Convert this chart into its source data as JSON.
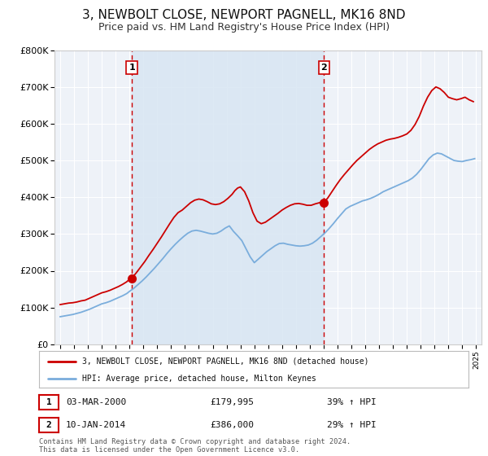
{
  "title": "3, NEWBOLT CLOSE, NEWPORT PAGNELL, MK16 8ND",
  "subtitle": "Price paid vs. HM Land Registry's House Price Index (HPI)",
  "title_fontsize": 11,
  "subtitle_fontsize": 9,
  "bg_color": "#ffffff",
  "plot_bg_color": "#eef2f8",
  "grid_color": "#ffffff",
  "red_line_color": "#cc0000",
  "blue_line_color": "#7aaddc",
  "marker_color": "#cc0000",
  "dashed_line_color": "#cc0000",
  "shaded_color": "#d8e6f3",
  "legend_label_red": "3, NEWBOLT CLOSE, NEWPORT PAGNELL, MK16 8ND (detached house)",
  "legend_label_blue": "HPI: Average price, detached house, Milton Keynes",
  "annotation1_box": "1",
  "annotation1_date": "03-MAR-2000",
  "annotation1_price": "£179,995",
  "annotation1_hpi": "39% ↑ HPI",
  "annotation2_box": "2",
  "annotation2_date": "10-JAN-2014",
  "annotation2_price": "£386,000",
  "annotation2_hpi": "29% ↑ HPI",
  "footnote": "Contains HM Land Registry data © Crown copyright and database right 2024.\nThis data is licensed under the Open Government Licence v3.0.",
  "ylim": [
    0,
    800000
  ],
  "ytick_labels": [
    "£0",
    "£100K",
    "£200K",
    "£300K",
    "£400K",
    "£500K",
    "£600K",
    "£700K",
    "£800K"
  ],
  "ytick_values": [
    0,
    100000,
    200000,
    300000,
    400000,
    500000,
    600000,
    700000,
    800000
  ],
  "marker1_x": 2000.17,
  "marker1_y": 179995,
  "marker2_x": 2014.03,
  "marker2_y": 386000,
  "vline1_x": 2000.17,
  "vline2_x": 2014.03,
  "xlim_left": 1994.6,
  "xlim_right": 2025.4,
  "red_data": {
    "x": [
      1995.0,
      1995.3,
      1995.6,
      1995.9,
      1996.2,
      1996.5,
      1996.8,
      1997.1,
      1997.4,
      1997.7,
      1998.0,
      1998.3,
      1998.6,
      1998.9,
      1999.2,
      1999.5,
      1999.8,
      2000.0,
      2000.17,
      2000.5,
      2000.8,
      2001.1,
      2001.4,
      2001.7,
      2002.0,
      2002.3,
      2002.6,
      2002.9,
      2003.2,
      2003.5,
      2003.8,
      2004.1,
      2004.4,
      2004.7,
      2005.0,
      2005.3,
      2005.6,
      2005.9,
      2006.2,
      2006.5,
      2006.8,
      2007.1,
      2007.4,
      2007.6,
      2007.8,
      2008.0,
      2008.3,
      2008.6,
      2008.9,
      2009.2,
      2009.5,
      2009.8,
      2010.1,
      2010.4,
      2010.7,
      2011.0,
      2011.3,
      2011.6,
      2011.9,
      2012.2,
      2012.5,
      2012.8,
      2013.1,
      2013.4,
      2013.7,
      2014.0,
      2014.03,
      2014.3,
      2014.6,
      2014.9,
      2015.2,
      2015.5,
      2015.8,
      2016.1,
      2016.4,
      2016.7,
      2017.0,
      2017.3,
      2017.6,
      2017.9,
      2018.2,
      2018.5,
      2018.8,
      2019.1,
      2019.4,
      2019.7,
      2020.0,
      2020.3,
      2020.6,
      2020.9,
      2021.2,
      2021.5,
      2021.8,
      2022.1,
      2022.4,
      2022.7,
      2023.0,
      2023.3,
      2023.6,
      2023.9,
      2024.2,
      2024.5,
      2024.8
    ],
    "y": [
      108000,
      110000,
      112000,
      113000,
      115000,
      118000,
      120000,
      125000,
      130000,
      135000,
      140000,
      143000,
      147000,
      152000,
      157000,
      163000,
      170000,
      177000,
      179995,
      195000,
      210000,
      225000,
      242000,
      258000,
      275000,
      292000,
      310000,
      328000,
      345000,
      358000,
      365000,
      375000,
      385000,
      392000,
      395000,
      393000,
      388000,
      382000,
      380000,
      382000,
      388000,
      397000,
      408000,
      418000,
      425000,
      428000,
      415000,
      390000,
      358000,
      335000,
      328000,
      332000,
      340000,
      348000,
      356000,
      365000,
      372000,
      378000,
      382000,
      383000,
      381000,
      378000,
      378000,
      382000,
      385000,
      390000,
      386000,
      398000,
      415000,
      432000,
      448000,
      462000,
      475000,
      488000,
      500000,
      510000,
      520000,
      530000,
      538000,
      545000,
      550000,
      555000,
      558000,
      560000,
      563000,
      567000,
      572000,
      582000,
      598000,
      620000,
      648000,
      672000,
      690000,
      700000,
      695000,
      685000,
      672000,
      668000,
      665000,
      668000,
      672000,
      665000,
      660000
    ]
  },
  "blue_data": {
    "x": [
      1995.0,
      1995.3,
      1995.6,
      1995.9,
      1996.2,
      1996.5,
      1996.8,
      1997.1,
      1997.4,
      1997.7,
      1998.0,
      1998.3,
      1998.6,
      1998.9,
      1999.2,
      1999.5,
      1999.8,
      2000.0,
      2000.3,
      2000.6,
      2000.9,
      2001.2,
      2001.5,
      2001.8,
      2002.1,
      2002.4,
      2002.7,
      2003.0,
      2003.3,
      2003.6,
      2003.9,
      2004.2,
      2004.5,
      2004.8,
      2005.1,
      2005.4,
      2005.7,
      2006.0,
      2006.3,
      2006.6,
      2006.9,
      2007.2,
      2007.5,
      2007.8,
      2008.1,
      2008.4,
      2008.7,
      2009.0,
      2009.3,
      2009.6,
      2009.9,
      2010.2,
      2010.5,
      2010.8,
      2011.1,
      2011.4,
      2011.7,
      2012.0,
      2012.3,
      2012.6,
      2012.9,
      2013.2,
      2013.5,
      2013.8,
      2014.1,
      2014.4,
      2014.7,
      2015.0,
      2015.3,
      2015.6,
      2015.9,
      2016.2,
      2016.5,
      2016.8,
      2017.1,
      2017.4,
      2017.7,
      2018.0,
      2018.3,
      2018.6,
      2018.9,
      2019.2,
      2019.5,
      2019.8,
      2020.1,
      2020.4,
      2020.7,
      2021.0,
      2021.3,
      2021.6,
      2021.9,
      2022.2,
      2022.5,
      2022.8,
      2023.1,
      2023.4,
      2023.7,
      2024.0,
      2024.3,
      2024.6,
      2024.9
    ],
    "y": [
      75000,
      77000,
      79000,
      81000,
      84000,
      87000,
      91000,
      95000,
      100000,
      105000,
      110000,
      113000,
      117000,
      122000,
      127000,
      132000,
      138000,
      144000,
      152000,
      162000,
      172000,
      183000,
      195000,
      207000,
      220000,
      233000,
      247000,
      260000,
      272000,
      283000,
      293000,
      302000,
      308000,
      310000,
      308000,
      305000,
      302000,
      300000,
      302000,
      308000,
      316000,
      322000,
      307000,
      295000,
      282000,
      260000,
      238000,
      222000,
      232000,
      242000,
      252000,
      260000,
      268000,
      274000,
      275000,
      272000,
      270000,
      268000,
      267000,
      268000,
      270000,
      275000,
      283000,
      293000,
      303000,
      315000,
      328000,
      342000,
      355000,
      368000,
      375000,
      380000,
      385000,
      390000,
      393000,
      397000,
      402000,
      408000,
      415000,
      420000,
      425000,
      430000,
      435000,
      440000,
      445000,
      452000,
      462000,
      475000,
      490000,
      505000,
      515000,
      520000,
      518000,
      512000,
      506000,
      500000,
      498000,
      497000,
      500000,
      502000,
      505000
    ]
  }
}
